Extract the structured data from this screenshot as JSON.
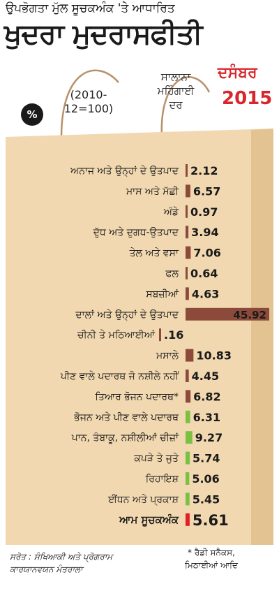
{
  "header": {
    "subtitle": "ਉਪਭੋਗਤਾ ਮੁੱਲ ਸੂਚਕਅੰਕ 'ਤੇ ਆਧਾਰਿਤ",
    "title": "ਖੁਦਰਾ ਮੁਦਰਾਸਫੀਤੀ",
    "percent_symbol": "%",
    "base_period": "(2010-12=100)",
    "yearly_label": "ਸਾਲਾਨਾ ਮਹਿੰਗਾਈ ਦਰ",
    "month": "ਦਸੰਬਰ",
    "year": "2015"
  },
  "footer": {
    "source": "ਸਰੋਤ : ਸੰਖਿਆਕੀ ਅਤੇ ਪ੍ਰੋਗਰਾਮ ਕਾਰਯਾਨਵਯਨ ਮੰਤਰਾਲਾ",
    "note": "* ਰੈਡੀ ਸਨੈਕਸ, ਮਿਠਾਈਆਂ ਆਦਿ"
  },
  "colors": {
    "bag": "#f1d8b0",
    "bag_edge": "#e2c391",
    "bar_brown": "#8b4a3a",
    "bar_green": "#7ac142",
    "bar_red": "#e21e26",
    "accent_red": "#d8262c"
  },
  "chart_data": {
    "type": "bar",
    "orientation": "horizontal",
    "title": "ਖੁਦਰਾ ਮੁਦਰਾਸਫੀਤੀ",
    "categories": [
      "ਅਨਾਜ ਅਤੇ ਉਨ੍ਹਾਂ ਦੇ ਉਤਪਾਦ",
      "ਮਾਸ ਅਤੇ ਮੱਛੀ",
      "ਅੰਡੇ",
      "ਦੁੱਧ ਅਤੇ ਦੁਗਧ-ਉਤਪਾਦ",
      "ਤੇਲ ਅਤੇ ਵਸਾ",
      "ਫਲ",
      "ਸਬਜ਼ੀਆਂ",
      "ਦਾਲਾਂ ਅਤੇ ਉਨ੍ਹਾਂ ਦੇ ਉਤਪਾਦ",
      "ਚੀਨੀ ਤੇ ਮਠਿਆਈਆਂ",
      "ਮਸਾਲੇ",
      "ਪੀਣ ਵਾਲੇ ਪਦਾਰਥ ਜੋ ਨਸ਼ੀਲੇ ਨਹੀਂ",
      "ਤਿਆਰ ਭੋਜਨ ਪਦਾਰਥ*",
      "ਭੋਜਨ ਅਤੇ ਪੀਣ ਵਾਲੇ ਪਦਾਰਥ",
      "ਪਾਨ, ਤੰਬਾਕੂ, ਨਸ਼ੀਲੀਆਂ ਚੀਜ਼ਾਂ",
      "ਕਪੜੇ ਤੇ ਜੁਤੇ",
      "ਰਿਹਾਇਸ਼",
      "ਈਂਧਨ ਅਤੇ ਪ੍ਰਕਾਸ਼",
      "ਆਮ ਸੂਚਕਅੰਕ"
    ],
    "values": [
      2.12,
      6.57,
      0.97,
      3.94,
      7.06,
      0.64,
      4.63,
      45.92,
      0.16,
      10.83,
      4.45,
      6.82,
      6.31,
      9.27,
      5.74,
      5.06,
      5.45,
      5.61
    ],
    "value_labels": [
      "2.12",
      "6.57",
      "0.97",
      "3.94",
      "7.06",
      "0.64",
      "4.63",
      "45.92",
      ".16",
      "10.83",
      "4.45",
      "6.82",
      "6.31",
      "9.27",
      "5.74",
      "5.06",
      "5.45",
      "5.61"
    ],
    "groups": [
      "brown",
      "brown",
      "brown",
      "brown",
      "brown",
      "brown",
      "brown",
      "brown",
      "brown",
      "brown",
      "brown",
      "brown",
      "green",
      "green",
      "green",
      "green",
      "green",
      "red"
    ],
    "xlim": [
      0,
      46
    ],
    "legend": "none",
    "grid": false
  }
}
